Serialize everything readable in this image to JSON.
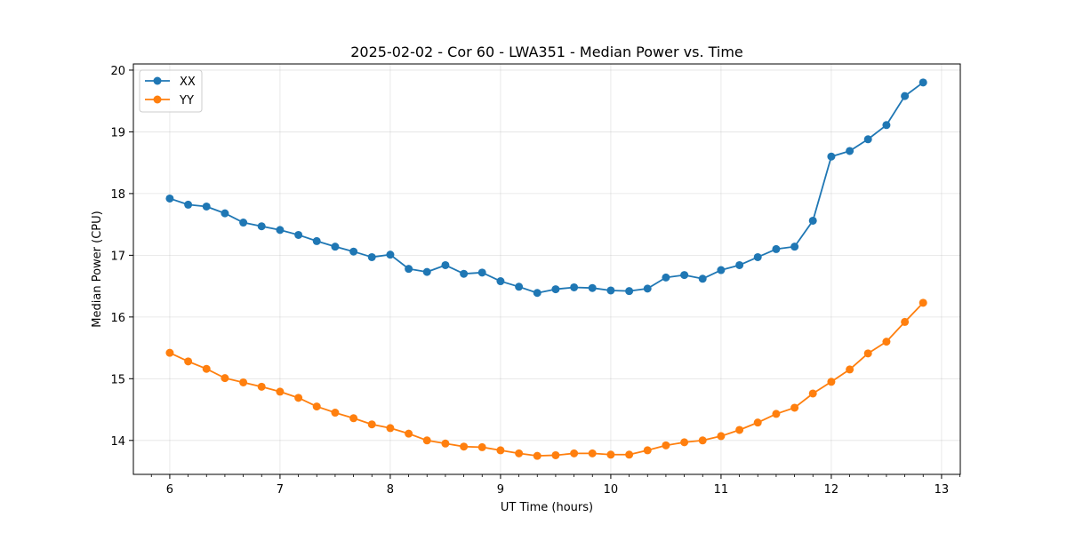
{
  "chart_data": {
    "type": "line",
    "title": "2025-02-02 - Cor 60 - LWA351 - Median Power vs. Time",
    "xlabel": "UT Time (hours)",
    "ylabel": "Median Power (CPU)",
    "xlim": [
      5.67,
      13.17
    ],
    "ylim": [
      13.45,
      20.1
    ],
    "xticks": [
      6,
      7,
      8,
      9,
      10,
      11,
      12,
      13
    ],
    "yticks": [
      14,
      15,
      16,
      17,
      18,
      19,
      20
    ],
    "grid": true,
    "legend_position": "top-left",
    "x": [
      6.0,
      6.167,
      6.333,
      6.5,
      6.667,
      6.833,
      7.0,
      7.167,
      7.333,
      7.5,
      7.667,
      7.833,
      8.0,
      8.167,
      8.333,
      8.5,
      8.667,
      8.833,
      9.0,
      9.167,
      9.333,
      9.5,
      9.667,
      9.833,
      10.0,
      10.167,
      10.333,
      10.5,
      10.667,
      10.833,
      11.0,
      11.167,
      11.333,
      11.5,
      11.667,
      11.833,
      12.0,
      12.167,
      12.333,
      12.5,
      12.667,
      12.833
    ],
    "series": [
      {
        "name": "XX",
        "color": "#1f77b4",
        "values": [
          17.92,
          17.82,
          17.79,
          17.68,
          17.53,
          17.47,
          17.41,
          17.33,
          17.23,
          17.14,
          17.06,
          16.97,
          17.01,
          16.78,
          16.73,
          16.84,
          16.7,
          16.72,
          16.58,
          16.49,
          16.39,
          16.45,
          16.48,
          16.47,
          16.43,
          16.42,
          16.46,
          16.64,
          16.68,
          16.62,
          16.76,
          16.84,
          16.97,
          17.1,
          17.14,
          17.56,
          18.6,
          18.69,
          18.88,
          19.11,
          19.58,
          19.8
        ]
      },
      {
        "name": "YY",
        "color": "#ff7f0e",
        "values": [
          15.42,
          15.28,
          15.16,
          15.01,
          14.94,
          14.87,
          14.79,
          14.69,
          14.55,
          14.45,
          14.36,
          14.26,
          14.2,
          14.11,
          14.0,
          13.95,
          13.9,
          13.89,
          13.84,
          13.79,
          13.75,
          13.76,
          13.79,
          13.79,
          13.77,
          13.77,
          13.84,
          13.92,
          13.97,
          14.0,
          14.07,
          14.17,
          14.29,
          14.43,
          14.53,
          14.76,
          14.95,
          15.15,
          15.41,
          15.6,
          15.92,
          16.23
        ]
      }
    ]
  }
}
